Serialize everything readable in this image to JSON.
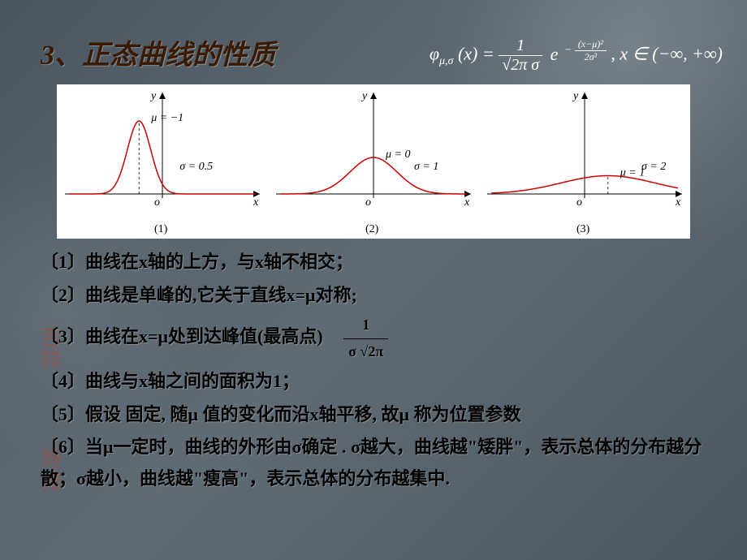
{
  "title": "3、正态曲线的性质",
  "formula": {
    "lhs_prefix": "φ",
    "lhs_sub": "μ,σ",
    "lhs_arg": "(x) =",
    "frac_num": "1",
    "frac_den": "√2π σ",
    "e": "e",
    "exp_neg": "−",
    "exp_num": "(x−μ)²",
    "exp_den": "2σ²",
    "domain": ", x ∈ (−∞, +∞)"
  },
  "graphs": {
    "items": [
      {
        "mu_label": "μ = −1",
        "sigma_label": "σ = 0.5",
        "caption": "(1)",
        "mu": -1,
        "sigma": 0.5
      },
      {
        "mu_label": "μ = 0",
        "sigma_label": "σ = 1",
        "caption": "(2)",
        "mu": 0,
        "sigma": 1
      },
      {
        "mu_label": "μ = 1",
        "sigma_label": "σ = 2",
        "caption": "(3)",
        "mu": 1,
        "sigma": 2
      }
    ],
    "curve_color": "#cc0000",
    "axis_color": "#000000",
    "bg_color": "#ffffff"
  },
  "props": {
    "p1": "〔1〕曲线在x轴的上方，与x轴不相交；",
    "p2": "〔2〕曲线是单峰的,它关于直线x=μ对称;",
    "p3": "〔3〕曲线在x=μ处到达峰值(最高点)",
    "p3_frac_num": "1",
    "p3_frac_den": "σ √2π",
    "p4": "〔4〕曲线与x轴之间的面积为1；",
    "p5": "〔5〕假设   固定, 随μ   值的变化而沿x轴平移, 故μ   称为位置参数",
    "p6": "〔6〕当μ一定时，曲线的外形由σ确定 . σ越大，曲线越\"矮胖\"，表示总体的分布越分散；σ越小，曲线越\"瘦高\"，表示总体的分布越集中."
  },
  "colors": {
    "title_color": "#3a1a00",
    "text_color": "#000000",
    "formula_color": "#ffffff",
    "bg": "#5a6670"
  }
}
